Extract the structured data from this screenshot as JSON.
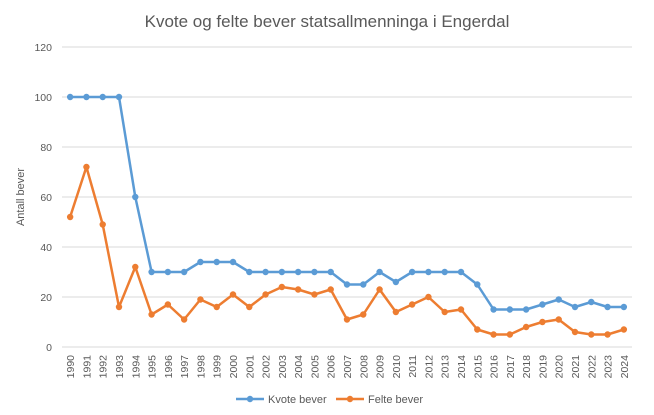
{
  "chart_data": {
    "type": "line",
    "title": "Kvote og felte bever statsallmenninga i Engerdal",
    "xlabel": "",
    "ylabel": "Antall bever",
    "ylim": [
      0,
      120
    ],
    "yticks": [
      0,
      20,
      40,
      60,
      80,
      100,
      120
    ],
    "grid": true,
    "legend_position": "bottom",
    "x": [
      "1990",
      "1991",
      "1992",
      "1993",
      "1994",
      "1995",
      "1996",
      "1997",
      "1998",
      "1999",
      "2000",
      "2001",
      "2002",
      "2003",
      "2004",
      "2005",
      "2006",
      "2007",
      "2008",
      "2009",
      "2010",
      "2011",
      "2012",
      "2013",
      "2014",
      "2015",
      "2016",
      "2017",
      "2018",
      "2019",
      "2020",
      "2021",
      "2022",
      "2023",
      "2024"
    ],
    "series": [
      {
        "name": "Kvote bever",
        "color": "#5b9bd5",
        "values": [
          100,
          100,
          100,
          100,
          60,
          30,
          30,
          30,
          34,
          34,
          34,
          30,
          30,
          30,
          30,
          30,
          30,
          25,
          25,
          30,
          26,
          30,
          30,
          30,
          30,
          25,
          15,
          15,
          15,
          17,
          19,
          16,
          18,
          16,
          16
        ]
      },
      {
        "name": "Felte bever",
        "color": "#ed7d31",
        "values": [
          52,
          72,
          49,
          16,
          32,
          13,
          17,
          11,
          19,
          16,
          21,
          16,
          21,
          24,
          23,
          21,
          23,
          11,
          13,
          23,
          14,
          17,
          20,
          14,
          15,
          7,
          5,
          5,
          8,
          10,
          11,
          6,
          5,
          5,
          7
        ]
      }
    ]
  }
}
